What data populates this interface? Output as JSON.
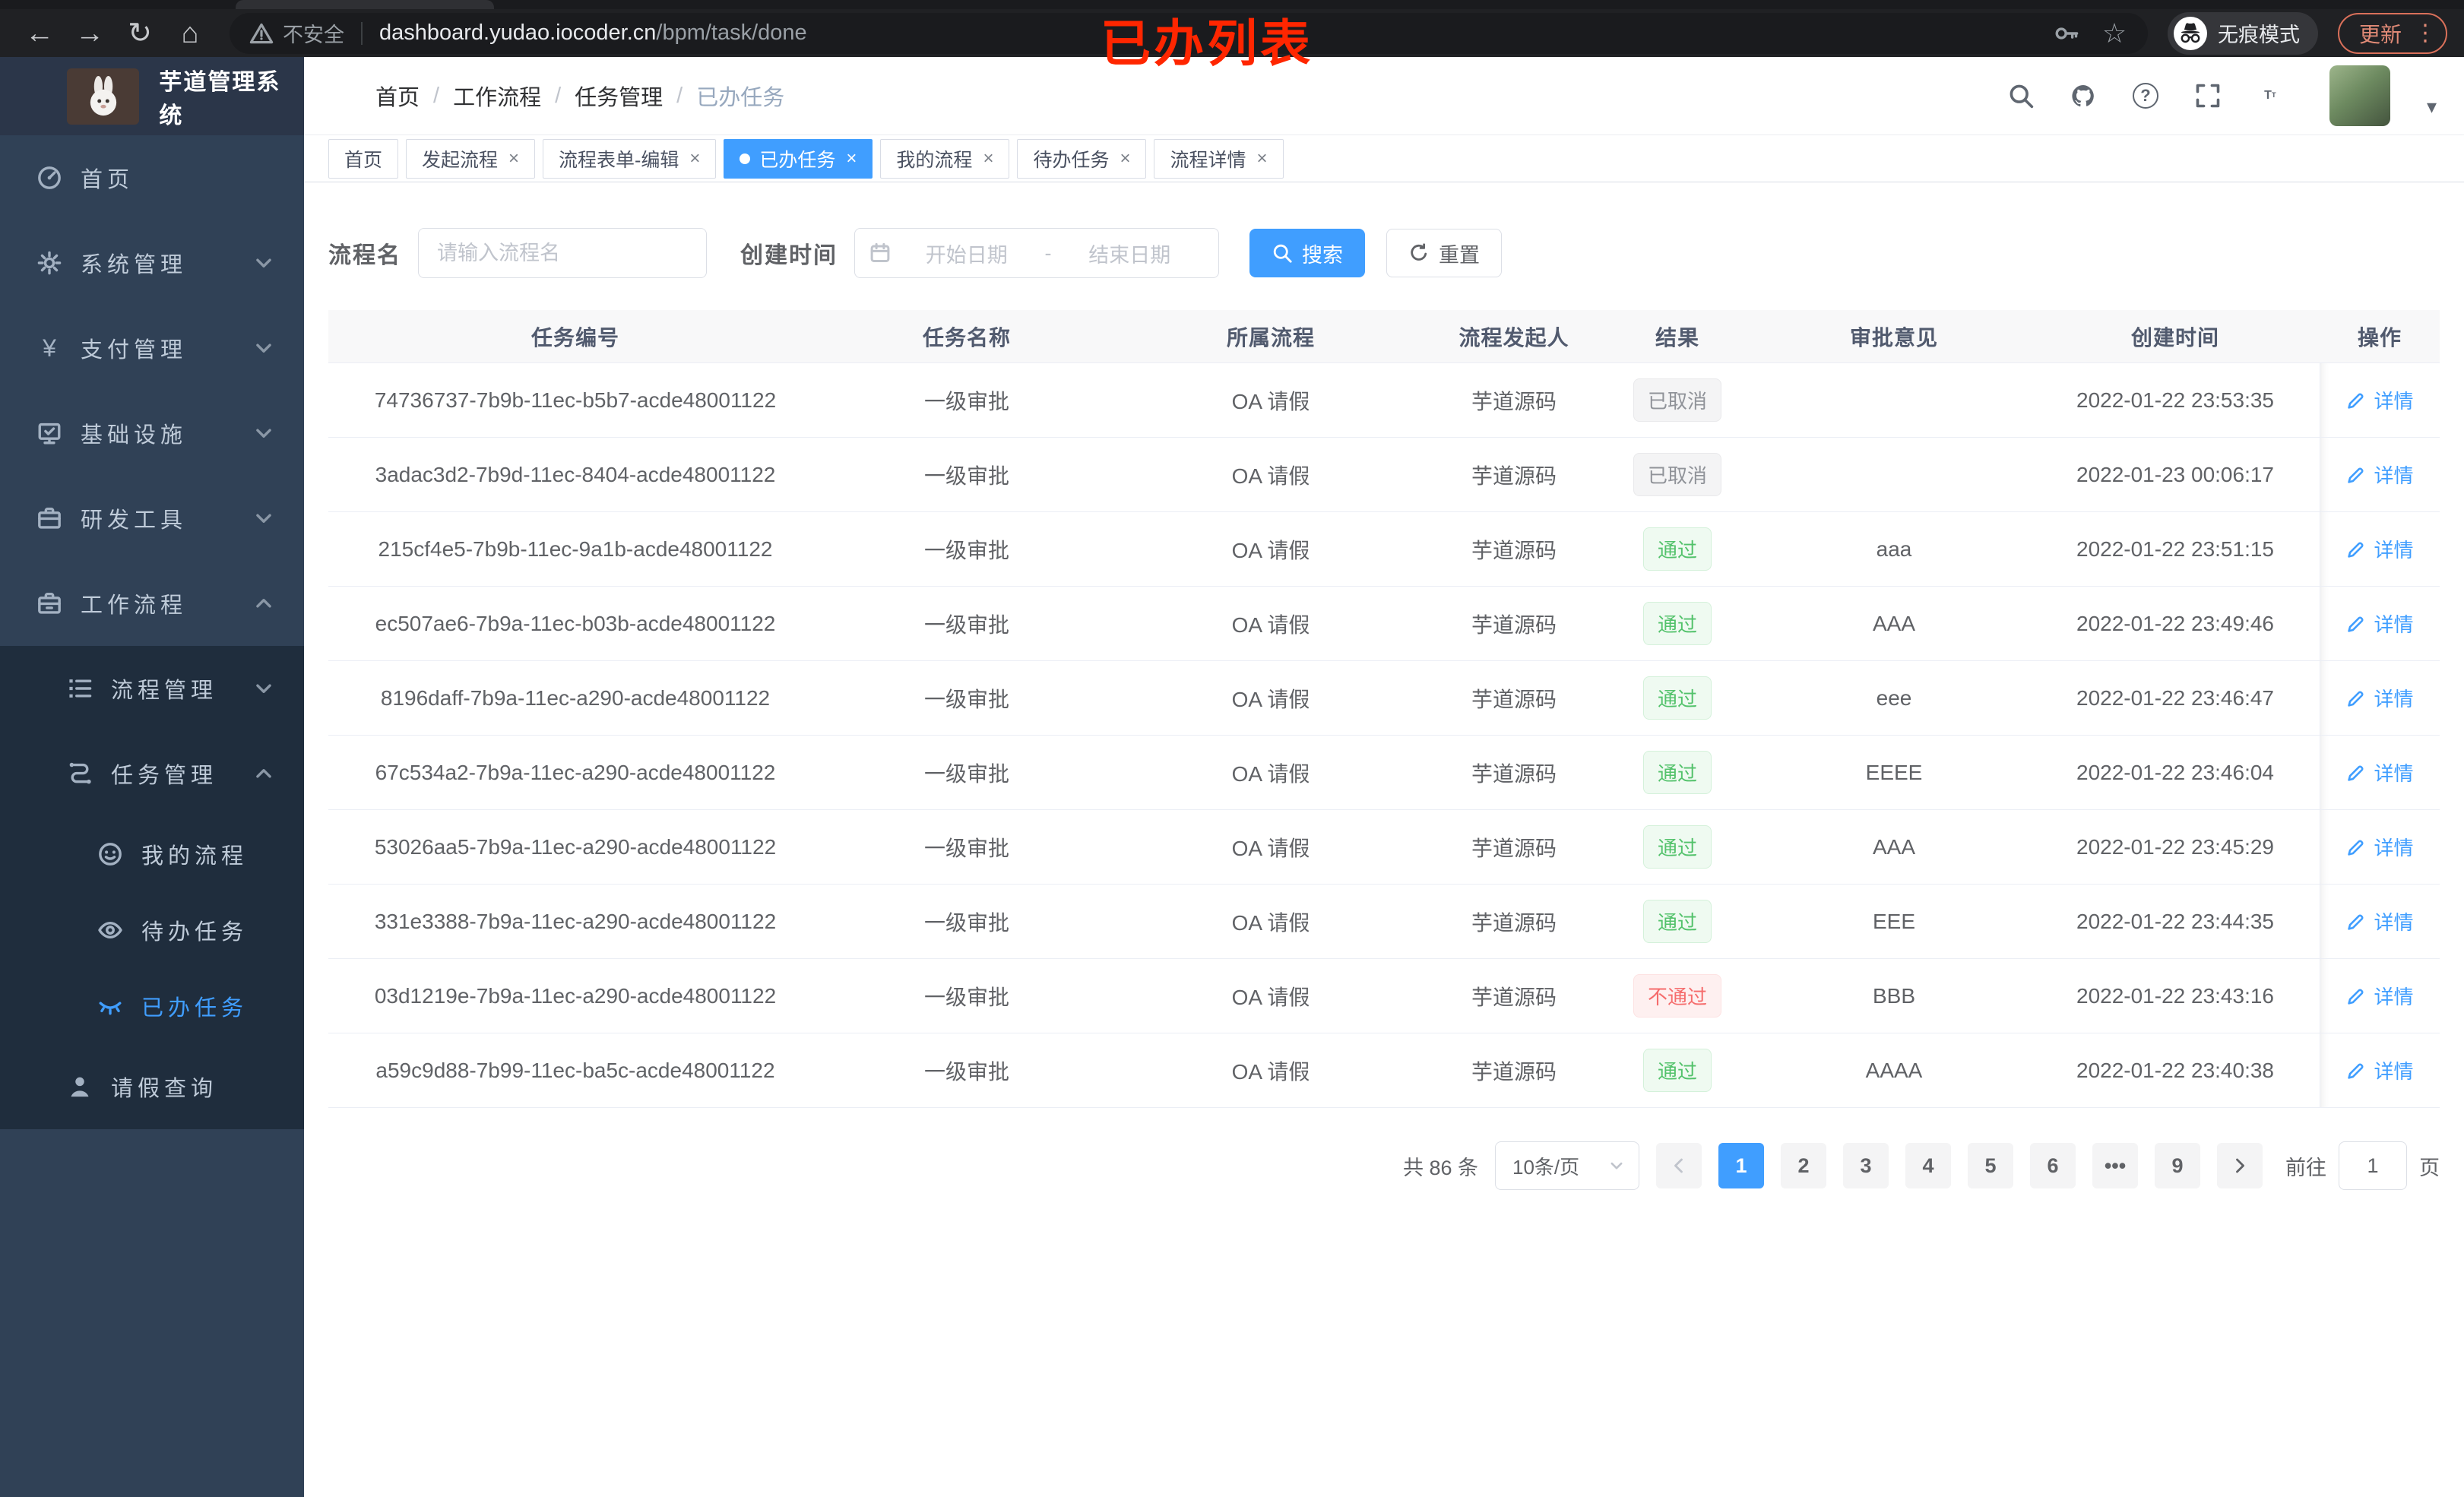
{
  "browser": {
    "security": "不安全",
    "url_host": "dashboard.yudao.iocoder.cn",
    "url_path": "/bpm/task/done",
    "incognito": "无痕模式",
    "update": "更新"
  },
  "annotation": "已办列表",
  "sidebar": {
    "title": "芋道管理系统",
    "menu": [
      {
        "label": "首页",
        "level": 1,
        "icon": "dashboard-icon"
      },
      {
        "label": "系统管理",
        "level": 1,
        "icon": "gear-icon",
        "chevron": "down"
      },
      {
        "label": "支付管理",
        "level": 1,
        "icon": "yen-icon",
        "chevron": "down"
      },
      {
        "label": "基础设施",
        "level": 1,
        "icon": "infrastructure-icon",
        "chevron": "down"
      },
      {
        "label": "研发工具",
        "level": 1,
        "icon": "toolbox-icon",
        "chevron": "down"
      },
      {
        "label": "工作流程",
        "level": 1,
        "icon": "workflow-icon",
        "chevron": "up"
      },
      {
        "label": "流程管理",
        "level": 2,
        "icon": "process-list-icon",
        "chevron": "down",
        "insub": true
      },
      {
        "label": "任务管理",
        "level": 2,
        "icon": "task-flow-icon",
        "chevron": "up",
        "insub": true
      },
      {
        "label": "我的流程",
        "level": 3,
        "icon": "face-icon",
        "insub": true
      },
      {
        "label": "待办任务",
        "level": 3,
        "icon": "eye-icon",
        "insub": true
      },
      {
        "label": "已办任务",
        "level": 3,
        "icon": "eye-closed-icon",
        "insub": true,
        "active": true
      },
      {
        "label": "请假查询",
        "level": 2,
        "icon": "person-icon",
        "insub": true
      }
    ]
  },
  "breadcrumb": [
    "首页",
    "工作流程",
    "任务管理",
    "已办任务"
  ],
  "tabs": [
    {
      "label": "首页",
      "closable": false,
      "active": false
    },
    {
      "label": "发起流程",
      "closable": true,
      "active": false
    },
    {
      "label": "流程表单-编辑",
      "closable": true,
      "active": false
    },
    {
      "label": "已办任务",
      "closable": true,
      "active": true
    },
    {
      "label": "我的流程",
      "closable": true,
      "active": false
    },
    {
      "label": "待办任务",
      "closable": true,
      "active": false
    },
    {
      "label": "流程详情",
      "closable": true,
      "active": false
    }
  ],
  "filters": {
    "name_label": "流程名",
    "name_placeholder": "请输入流程名",
    "time_label": "创建时间",
    "start_placeholder": "开始日期",
    "range_separator": "-",
    "end_placeholder": "结束日期",
    "search_label": "搜索",
    "reset_label": "重置"
  },
  "table": {
    "columns": [
      "任务编号",
      "任务名称",
      "所属流程",
      "流程发起人",
      "结果",
      "审批意见",
      "创建时间",
      "操作"
    ],
    "rows": [
      {
        "id": "74736737-7b9b-11ec-b5b7-acde48001122",
        "name": "一级审批",
        "process": "OA 请假",
        "starter": "芋道源码",
        "result": {
          "label": "已取消",
          "type": "info"
        },
        "comment": "",
        "time": "2022-01-22 23:53:35",
        "action": "详情"
      },
      {
        "id": "3adac3d2-7b9d-11ec-8404-acde48001122",
        "name": "一级审批",
        "process": "OA 请假",
        "starter": "芋道源码",
        "result": {
          "label": "已取消",
          "type": "info"
        },
        "comment": "",
        "time": "2022-01-23 00:06:17",
        "action": "详情"
      },
      {
        "id": "215cf4e5-7b9b-11ec-9a1b-acde48001122",
        "name": "一级审批",
        "process": "OA 请假",
        "starter": "芋道源码",
        "result": {
          "label": "通过",
          "type": "success"
        },
        "comment": "aaa",
        "time": "2022-01-22 23:51:15",
        "action": "详情"
      },
      {
        "id": "ec507ae6-7b9a-11ec-b03b-acde48001122",
        "name": "一级审批",
        "process": "OA 请假",
        "starter": "芋道源码",
        "result": {
          "label": "通过",
          "type": "success"
        },
        "comment": "AAA",
        "time": "2022-01-22 23:49:46",
        "action": "详情"
      },
      {
        "id": "8196daff-7b9a-11ec-a290-acde48001122",
        "name": "一级审批",
        "process": "OA 请假",
        "starter": "芋道源码",
        "result": {
          "label": "通过",
          "type": "success"
        },
        "comment": "eee",
        "time": "2022-01-22 23:46:47",
        "action": "详情"
      },
      {
        "id": "67c534a2-7b9a-11ec-a290-acde48001122",
        "name": "一级审批",
        "process": "OA 请假",
        "starter": "芋道源码",
        "result": {
          "label": "通过",
          "type": "success"
        },
        "comment": "EEEE",
        "time": "2022-01-22 23:46:04",
        "action": "详情"
      },
      {
        "id": "53026aa5-7b9a-11ec-a290-acde48001122",
        "name": "一级审批",
        "process": "OA 请假",
        "starter": "芋道源码",
        "result": {
          "label": "通过",
          "type": "success"
        },
        "comment": "AAA",
        "time": "2022-01-22 23:45:29",
        "action": "详情"
      },
      {
        "id": "331e3388-7b9a-11ec-a290-acde48001122",
        "name": "一级审批",
        "process": "OA 请假",
        "starter": "芋道源码",
        "result": {
          "label": "通过",
          "type": "success"
        },
        "comment": "EEE",
        "time": "2022-01-22 23:44:35",
        "action": "详情"
      },
      {
        "id": "03d1219e-7b9a-11ec-a290-acde48001122",
        "name": "一级审批",
        "process": "OA 请假",
        "starter": "芋道源码",
        "result": {
          "label": "不通过",
          "type": "danger"
        },
        "comment": "BBB",
        "time": "2022-01-22 23:43:16",
        "action": "详情"
      },
      {
        "id": "a59c9d88-7b99-11ec-ba5c-acde48001122",
        "name": "一级审批",
        "process": "OA 请假",
        "starter": "芋道源码",
        "result": {
          "label": "通过",
          "type": "success"
        },
        "comment": "AAAA",
        "time": "2022-01-22 23:40:38",
        "action": "详情"
      }
    ]
  },
  "pagination": {
    "total": "共 86 条",
    "page_size": "10条/页",
    "pages": [
      "1",
      "2",
      "3",
      "4",
      "5",
      "6",
      "•••",
      "9"
    ],
    "active_page": "1",
    "goto_label": "前往",
    "goto_value": "1",
    "unit": "页"
  },
  "colors": {
    "accent": "#409eff",
    "success": "#53c26b",
    "danger": "#f56c6c",
    "info": "#909399",
    "annotation_red": "#ff2600",
    "sidebar_bg": "#304156",
    "submenu_bg": "#1f2d3d"
  }
}
